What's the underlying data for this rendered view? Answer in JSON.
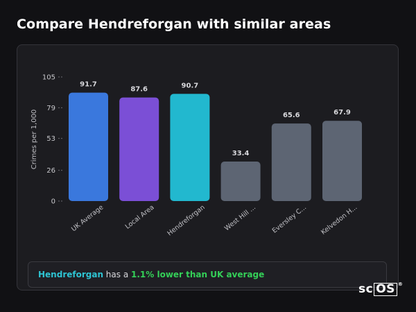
{
  "page": {
    "title": "Compare Hendreforgan with similar areas"
  },
  "chart_data": {
    "type": "bar",
    "ylabel": "Crimes per 1,000",
    "xlabel": "",
    "ylim": [
      0,
      105
    ],
    "yticks": [
      0,
      26,
      53,
      79,
      105
    ],
    "categories": [
      "UK Average",
      "Local Area",
      "Hendreforgan",
      "West Hill ...",
      "Eversley C...",
      "Kelvedon H..."
    ],
    "values": [
      91.7,
      87.6,
      90.7,
      33.4,
      65.6,
      67.9
    ],
    "value_labels": [
      "91.7",
      "87.6",
      "90.7",
      "33.4",
      "65.6",
      "67.9"
    ],
    "colors": [
      "#3a78dd",
      "#7b4fd6",
      "#22b8cf",
      "#5d6573",
      "#5d6573",
      "#5d6573"
    ],
    "grid": false
  },
  "note": {
    "place": "Hendreforgan",
    "middle": " has a ",
    "difference": "1.1% lower than UK average"
  },
  "logo": {
    "part1": "sc",
    "part2": "OS",
    "mark": "®"
  }
}
